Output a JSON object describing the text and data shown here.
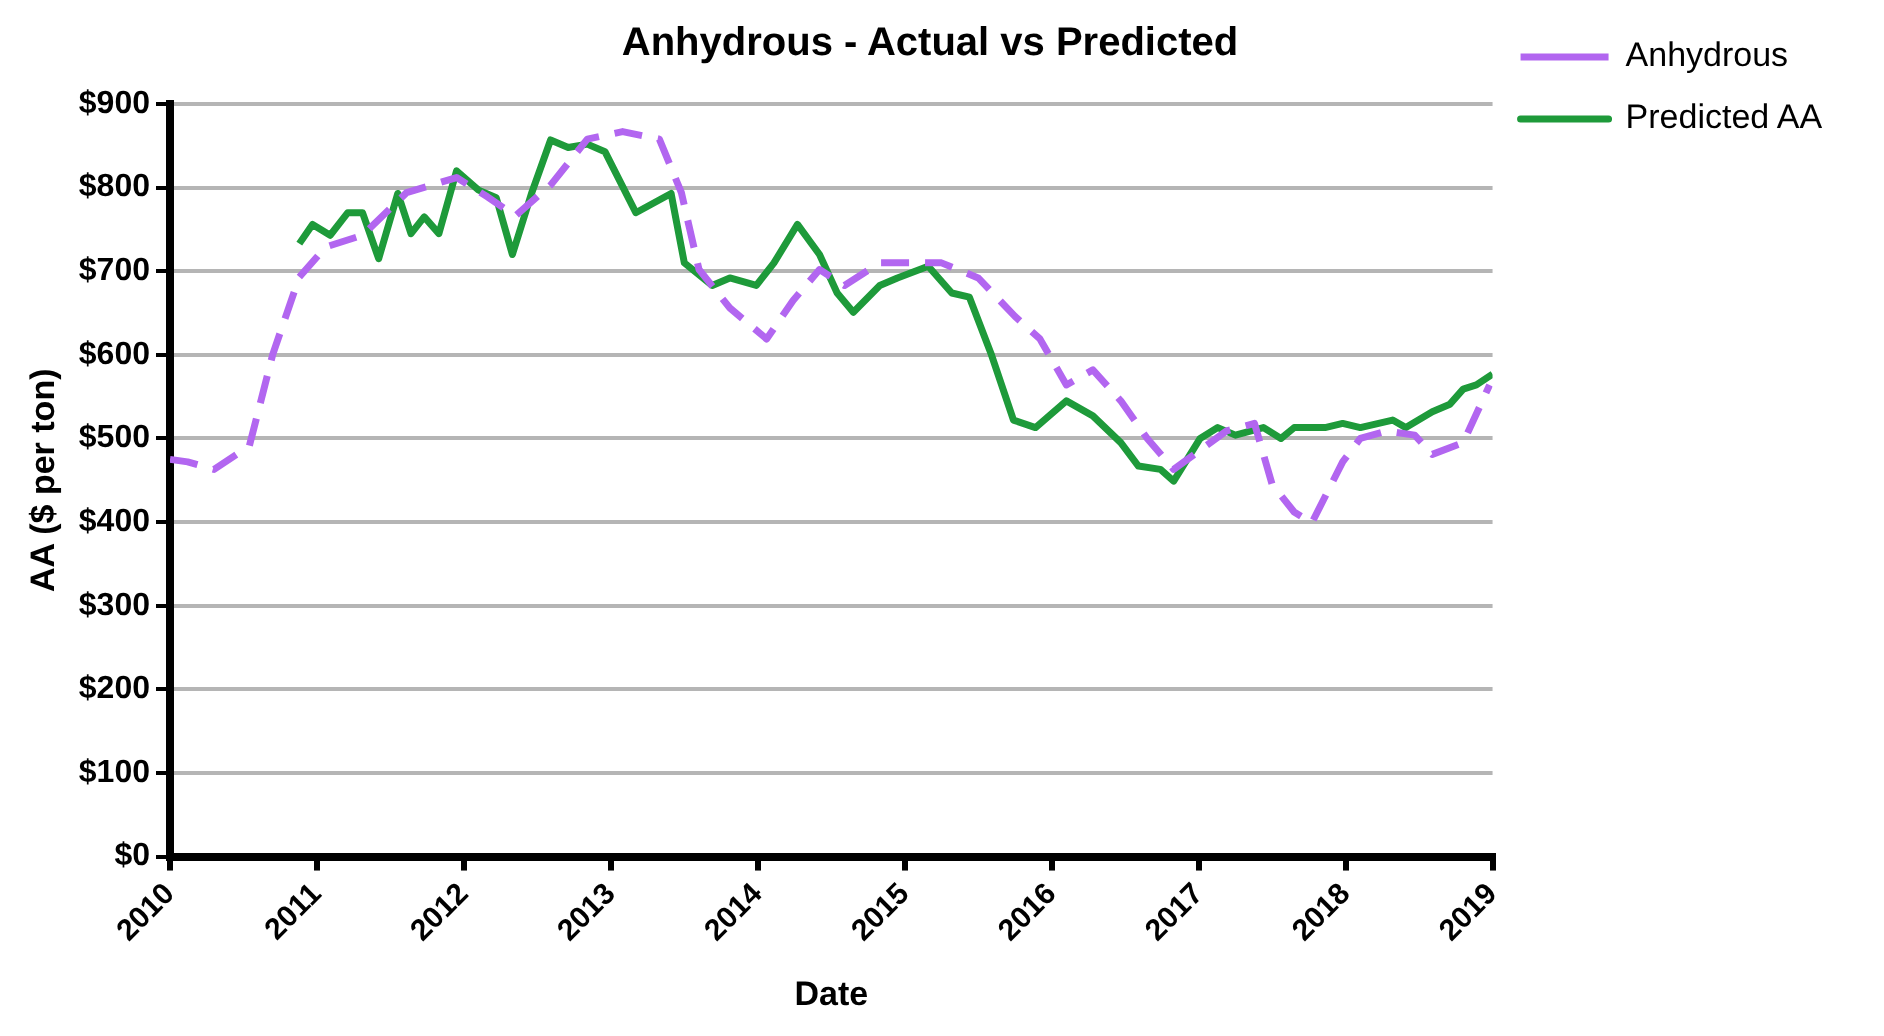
{
  "chart_data": {
    "type": "line",
    "title": "Anhydrous - Actual vs Predicted",
    "xlabel": "Date",
    "ylabel": "AA ($ per ton)",
    "xlim": [
      2010,
      2019
    ],
    "xticks": [
      2010,
      2011,
      2012,
      2013,
      2014,
      2015,
      2016,
      2017,
      2018,
      2019
    ],
    "ylim": [
      0,
      900
    ],
    "yticks": [
      {
        "value": 0,
        "label": "$0"
      },
      {
        "value": 100,
        "label": "$100"
      },
      {
        "value": 200,
        "label": "$200"
      },
      {
        "value": 300,
        "label": "$300"
      },
      {
        "value": 400,
        "label": "$400"
      },
      {
        "value": 500,
        "label": "$500"
      },
      {
        "value": 600,
        "label": "$600"
      },
      {
        "value": 700,
        "label": "$700"
      },
      {
        "value": 800,
        "label": "$800"
      },
      {
        "value": 900,
        "label": "$900"
      }
    ],
    "grid": "y",
    "legend": "top right",
    "marker": "none",
    "series": [
      {
        "name": "Anhydrous",
        "color": "#b266f0",
        "line_style": "dashed",
        "x": [
          2010.0,
          2010.12,
          2010.3,
          2010.54,
          2010.7,
          2010.88,
          2011.06,
          2011.31,
          2011.61,
          2011.95,
          2012.16,
          2012.35,
          2012.59,
          2012.84,
          2013.08,
          2013.33,
          2013.48,
          2013.6,
          2013.81,
          2014.06,
          2014.24,
          2014.42,
          2014.59,
          2014.83,
          2015.25,
          2015.5,
          2015.75,
          2015.92,
          2016.1,
          2016.28,
          2016.47,
          2016.65,
          2016.83,
          2017.01,
          2017.19,
          2017.38,
          2017.5,
          2017.65,
          2017.77,
          2017.98,
          2018.1,
          2018.28,
          2018.47,
          2018.59,
          2018.8,
          2018.98
        ],
        "values": [
          475,
          472,
          463,
          491,
          601,
          693,
          729,
          743,
          794,
          812,
          789,
          766,
          803,
          858,
          867,
          858,
          794,
          702,
          656,
          619,
          665,
          702,
          683,
          710,
          710,
          692,
          646,
          619,
          564,
          582,
          545,
          500,
          463,
          486,
          509,
          518,
          445,
          412,
          399,
          472,
          500,
          509,
          504,
          481,
          495,
          564
        ]
      },
      {
        "name": "Predicted AA",
        "color": "#1e9a3a",
        "line_style": "solid",
        "x": [
          2010.88,
          2010.97,
          2011.09,
          2011.21,
          2011.31,
          2011.42,
          2011.55,
          2011.64,
          2011.73,
          2011.83,
          2011.95,
          2012.1,
          2012.22,
          2012.33,
          2012.46,
          2012.59,
          2012.71,
          2012.84,
          2012.96,
          2013.17,
          2013.41,
          2013.5,
          2013.69,
          2013.81,
          2013.99,
          2014.11,
          2014.27,
          2014.42,
          2014.54,
          2014.65,
          2014.83,
          2014.95,
          2015.16,
          2015.32,
          2015.44,
          2015.59,
          2015.74,
          2015.89,
          2016.1,
          2016.28,
          2016.47,
          2016.59,
          2016.74,
          2016.83,
          2017.01,
          2017.13,
          2017.25,
          2017.44,
          2017.56,
          2017.65,
          2017.86,
          2017.98,
          2018.1,
          2018.32,
          2018.41,
          2018.59,
          2018.71,
          2018.8,
          2018.89,
          2019.0
        ],
        "values": [
          733,
          756,
          743,
          770,
          770,
          715,
          793,
          745,
          765,
          745,
          820,
          797,
          788,
          720,
          793,
          857,
          848,
          852,
          843,
          770,
          793,
          710,
          683,
          692,
          683,
          710,
          756,
          720,
          674,
          651,
          683,
          692,
          706,
          674,
          669,
          600,
          522,
          513,
          545,
          527,
          495,
          467,
          463,
          449,
          500,
          513,
          504,
          513,
          500,
          513,
          513,
          518,
          513,
          522,
          513,
          532,
          541,
          559,
          564,
          577
        ]
      }
    ]
  }
}
